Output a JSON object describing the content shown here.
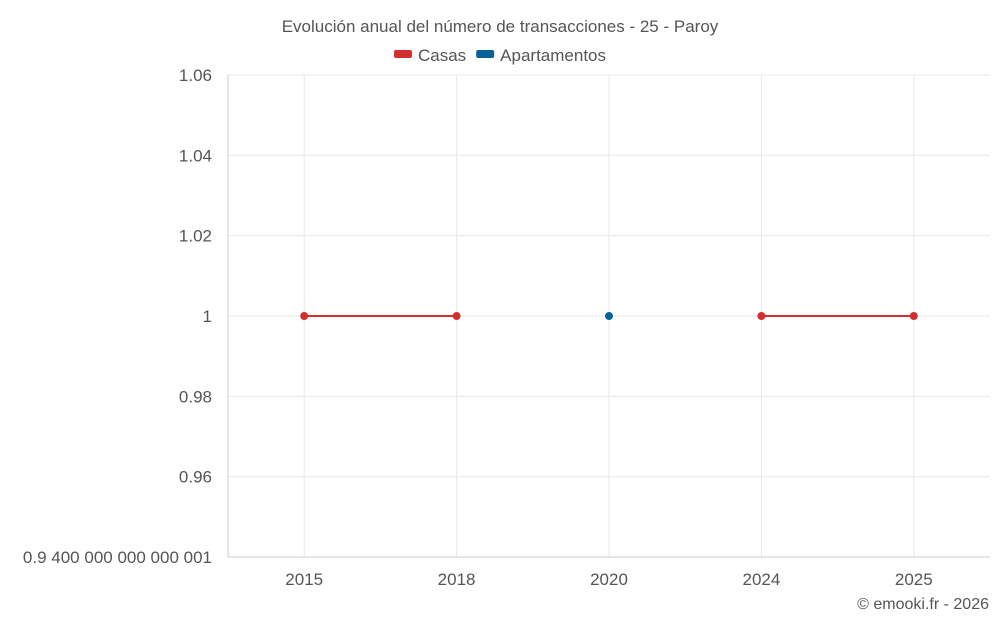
{
  "chart_data": {
    "type": "line",
    "title": "Evolución anual del número de transacciones - 25 - Paroy",
    "categories": [
      "2015",
      "2018",
      "2020",
      "2024",
      "2025"
    ],
    "y_ticks": [
      "1.06",
      "1.04",
      "1.02",
      "1",
      "0.98",
      "0.96",
      "0.9 400 000 000 000 001"
    ],
    "y_tick_values": [
      1.06,
      1.04,
      1.02,
      1.0,
      0.98,
      0.96,
      0.94
    ],
    "ylim": [
      0.94,
      1.06
    ],
    "grid": true,
    "legend_position": "top-center",
    "series": [
      {
        "name": "Casas",
        "color": "#d32f2f",
        "values": [
          1,
          1,
          null,
          1,
          1
        ]
      },
      {
        "name": "Apartamentos",
        "color": "#08629a",
        "values": [
          null,
          null,
          1,
          null,
          null
        ]
      }
    ]
  },
  "credit": "© emooki.fr - 2026"
}
